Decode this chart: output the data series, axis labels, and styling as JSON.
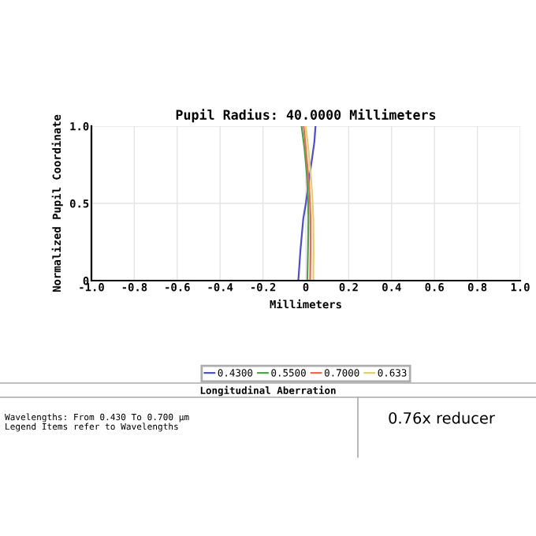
{
  "chart_data": {
    "type": "line",
    "title": "Pupil Radius: 40.0000 Millimeters",
    "xlabel": "Millimeters",
    "ylabel": "Normalized Pupil Coordinate",
    "xlim": [
      -1.0,
      1.0
    ],
    "xticks": [
      {
        "value": -1.0,
        "label": "-1.0"
      },
      {
        "value": -0.8,
        "label": "-0.8"
      },
      {
        "value": -0.6,
        "label": "-0.6"
      },
      {
        "value": -0.4,
        "label": "-0.4"
      },
      {
        "value": -0.2,
        "label": "-0.2"
      },
      {
        "value": 0,
        "label": "0"
      },
      {
        "value": 0.2,
        "label": "0.2"
      },
      {
        "value": 0.4,
        "label": "0.4"
      },
      {
        "value": 0.6,
        "label": "0.6"
      },
      {
        "value": 0.8,
        "label": "0.8"
      },
      {
        "value": 1.0,
        "label": "1.0"
      }
    ],
    "ylim": [
      0,
      1.0
    ],
    "yticks": [
      {
        "value": 0,
        "label": "0"
      },
      {
        "value": 0.5,
        "label": "0.5"
      },
      {
        "value": 1.0,
        "label": "1.0"
      }
    ],
    "grid": true,
    "legend": "bottom",
    "line_style": "solid",
    "series": [
      {
        "name": "0.4300",
        "color": "#5050c8",
        "x": [
          -0.035,
          -0.025,
          -0.012,
          0.0,
          0.015,
          0.03,
          0.04,
          0.045
        ],
        "values": [
          0,
          0.2,
          0.4,
          0.5,
          0.65,
          0.8,
          0.9,
          1.0
        ]
      },
      {
        "name": "0.5500",
        "color": "#50a050",
        "x": [
          0.007,
          0.01,
          0.012,
          0.01,
          0.004,
          -0.006,
          -0.02
        ],
        "values": [
          0,
          0.2,
          0.4,
          0.55,
          0.7,
          0.85,
          1.0
        ]
      },
      {
        "name": "0.7000",
        "color": "#e07050",
        "x": [
          0.02,
          0.022,
          0.022,
          0.018,
          0.01,
          0.0,
          -0.01
        ],
        "values": [
          0,
          0.2,
          0.4,
          0.55,
          0.7,
          0.85,
          1.0
        ]
      },
      {
        "name": "0.633",
        "color": "#e0d070",
        "x": [
          0.035,
          0.036,
          0.035,
          0.03,
          0.022,
          0.012,
          0.0
        ],
        "values": [
          0,
          0.2,
          0.4,
          0.55,
          0.7,
          0.85,
          1.0
        ]
      }
    ],
    "annotations": [
      "Longitudinal Aberration",
      "Wavelengths: From 0.430 To 0.700 µm",
      "Legend Items refer to Wavelengths",
      "0.76x reducer"
    ]
  }
}
